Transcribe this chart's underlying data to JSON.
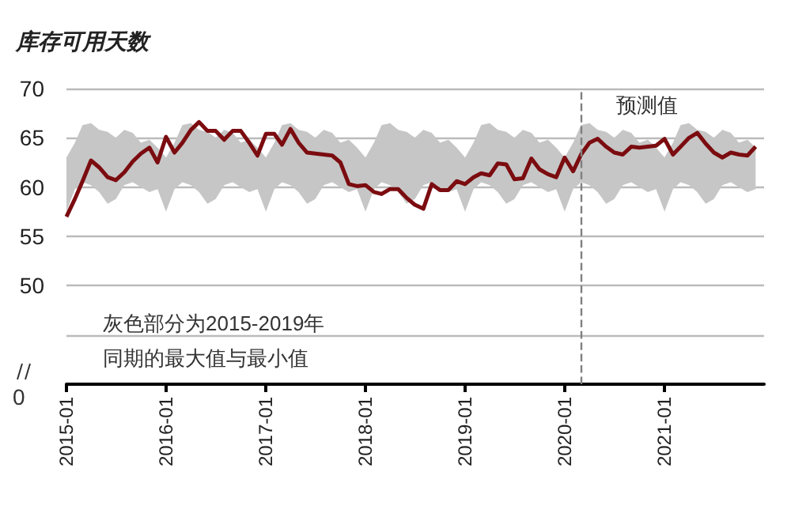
{
  "chart_data": {
    "type": "line",
    "title": "库存可用天数",
    "x": [
      "2015-01",
      "2015-02",
      "2015-03",
      "2015-04",
      "2015-05",
      "2015-06",
      "2015-07",
      "2015-08",
      "2015-09",
      "2015-10",
      "2015-11",
      "2015-12",
      "2016-01",
      "2016-02",
      "2016-03",
      "2016-04",
      "2016-05",
      "2016-06",
      "2016-07",
      "2016-08",
      "2016-09",
      "2016-10",
      "2016-11",
      "2016-12",
      "2017-01",
      "2017-02",
      "2017-03",
      "2017-04",
      "2017-05",
      "2017-06",
      "2017-07",
      "2017-08",
      "2017-09",
      "2017-10",
      "2017-11",
      "2017-12",
      "2018-01",
      "2018-02",
      "2018-03",
      "2018-04",
      "2018-05",
      "2018-06",
      "2018-07",
      "2018-08",
      "2018-09",
      "2018-10",
      "2018-11",
      "2018-12",
      "2019-01",
      "2019-02",
      "2019-03",
      "2019-04",
      "2019-05",
      "2019-06",
      "2019-07",
      "2019-08",
      "2019-09",
      "2019-10",
      "2019-11",
      "2019-12",
      "2020-01",
      "2020-02",
      "2020-03",
      "2020-04",
      "2020-05",
      "2020-06",
      "2020-07",
      "2020-08",
      "2020-09",
      "2020-10",
      "2020-11",
      "2020-12",
      "2021-01",
      "2021-02",
      "2021-03",
      "2021-04",
      "2021-05",
      "2021-06",
      "2021-07",
      "2021-08",
      "2021-09",
      "2021-10",
      "2021-11",
      "2021-12"
    ],
    "series": [
      {
        "color": "#7b0c10",
        "values": [
          57.0,
          58.8,
          60.6,
          62.7,
          62.0,
          61.0,
          60.7,
          61.5,
          62.6,
          63.4,
          64.0,
          62.5,
          65.1,
          63.5,
          64.5,
          65.8,
          66.6,
          65.7,
          65.7,
          64.8,
          65.7,
          65.7,
          64.5,
          63.2,
          65.4,
          65.4,
          64.3,
          65.9,
          64.5,
          63.5,
          63.4,
          63.3,
          63.2,
          62.5,
          60.3,
          60.1,
          60.2,
          59.5,
          59.3,
          59.8,
          59.8,
          58.9,
          58.2,
          57.8,
          60.3,
          59.7,
          59.7,
          60.6,
          60.3,
          61.0,
          61.4,
          61.2,
          62.4,
          62.3,
          60.8,
          60.9,
          62.9,
          61.8,
          61.3,
          61.0,
          63.0,
          61.6,
          63.3,
          64.5,
          64.9,
          64.1,
          63.5,
          63.3,
          64.1,
          64.0,
          64.1,
          64.2,
          64.9,
          63.3,
          64.1,
          65.0,
          65.5,
          64.4,
          63.5,
          63.0,
          63.5,
          63.3,
          63.2,
          64.1
        ],
        "lower": [
          57.5,
          59.8,
          60.5,
          60.2,
          59.5,
          58.3,
          58.8,
          60.2,
          60.5,
          60.0,
          59.5,
          59.8,
          57.5,
          59.8,
          60.5,
          60.2,
          59.5,
          58.3,
          58.8,
          60.2,
          60.5,
          60.0,
          59.5,
          59.8,
          57.5,
          59.8,
          60.5,
          60.2,
          59.5,
          58.3,
          58.8,
          60.2,
          60.5,
          60.0,
          59.5,
          59.8,
          57.5,
          59.8,
          60.5,
          60.2,
          59.5,
          58.3,
          58.8,
          60.2,
          60.5,
          60.0,
          59.5,
          59.8,
          57.5,
          59.8,
          60.5,
          60.2,
          59.5,
          58.3,
          58.8,
          60.2,
          60.5,
          60.0,
          59.5,
          59.8,
          57.5,
          59.8,
          60.5,
          60.2,
          59.5,
          58.3,
          58.8,
          60.2,
          60.5,
          60.0,
          59.5,
          59.8,
          57.5,
          59.8,
          60.5,
          60.2,
          59.5,
          58.3,
          58.8,
          60.2,
          60.5,
          60.0,
          59.5,
          59.8
        ],
        "upper": [
          63.0,
          64.5,
          66.3,
          66.5,
          65.8,
          65.6,
          65.0,
          65.8,
          65.5,
          64.5,
          64.8,
          64.0,
          63.0,
          64.5,
          66.3,
          66.5,
          65.8,
          65.6,
          65.0,
          65.8,
          65.5,
          64.5,
          64.8,
          64.0,
          63.0,
          64.5,
          66.3,
          66.5,
          65.8,
          65.6,
          65.0,
          65.8,
          65.5,
          64.5,
          64.8,
          64.0,
          63.0,
          64.5,
          66.3,
          66.5,
          65.8,
          65.6,
          65.0,
          65.8,
          65.5,
          64.5,
          64.8,
          64.0,
          63.0,
          64.5,
          66.3,
          66.5,
          65.8,
          65.6,
          65.0,
          65.8,
          65.5,
          64.5,
          64.8,
          64.0,
          63.0,
          64.5,
          66.3,
          66.5,
          65.8,
          65.6,
          65.0,
          65.8,
          65.5,
          64.5,
          64.8,
          64.0,
          63.0,
          64.5,
          66.3,
          66.5,
          65.8,
          65.6,
          65.0,
          65.8,
          65.5,
          64.5,
          64.8,
          64.0
        ]
      }
    ],
    "xlim": [
      "2015-01",
      "2022-01"
    ],
    "xticks": [
      "2015-01",
      "2016-01",
      "2017-01",
      "2018-01",
      "2019-01",
      "2020-01",
      "2021-01"
    ],
    "ylim": [
      40,
      70
    ],
    "yticks": [
      {
        "value": 40,
        "label": null
      },
      {
        "value": 45,
        "label": null
      },
      50,
      55,
      60,
      65,
      70
    ],
    "grid": "y",
    "marker": "none",
    "line_style": "solid",
    "ref_lines": [
      {
        "axis": "x",
        "value": "2020-03",
        "label": "预测值",
        "line_style": "dashed",
        "color": "#808080"
      }
    ],
    "annotations": [
      "灰色部分为2015-2019年",
      "同期的最大值与最小值",
      "0"
    ]
  }
}
